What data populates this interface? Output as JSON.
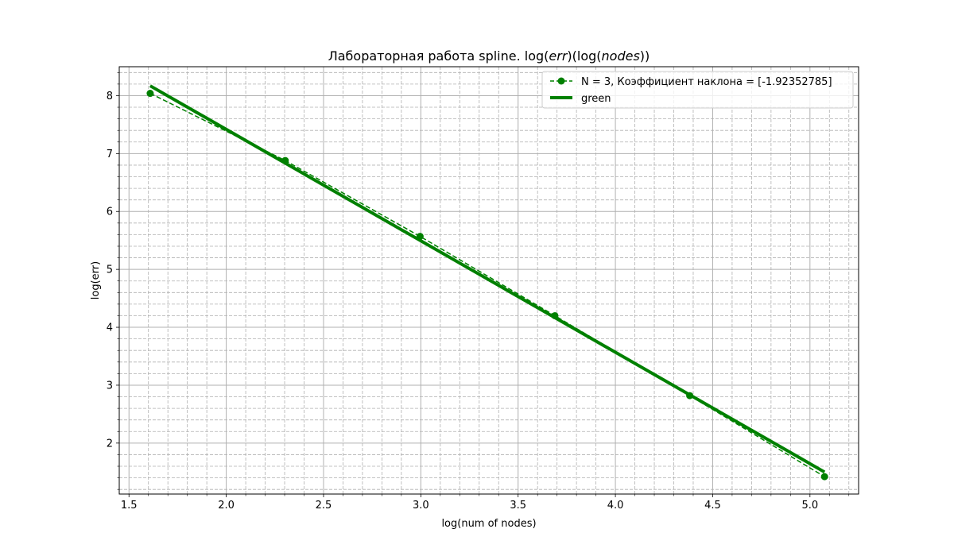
{
  "chart_data": {
    "type": "line",
    "title": {
      "prefix": "Лабораторная работа spline. log(",
      "italic1": "err",
      "middle": ")(log(",
      "italic2": "nodes",
      "suffix": "))"
    },
    "xlabel": "log(num of nodes)",
    "ylabel": "log(err)",
    "xlim": [
      1.45,
      5.25
    ],
    "ylim": [
      1.12,
      8.5
    ],
    "x_ticks": [
      1.5,
      2.0,
      2.5,
      3.0,
      3.5,
      4.0,
      4.5,
      5.0
    ],
    "x_tick_labels": [
      "1.5",
      "2.0",
      "2.5",
      "3.0",
      "3.5",
      "4.0",
      "4.5",
      "5.0"
    ],
    "y_ticks": [
      2,
      3,
      4,
      5,
      6,
      7,
      8
    ],
    "y_tick_labels": [
      "2",
      "3",
      "4",
      "5",
      "6",
      "7",
      "8"
    ],
    "grid": "on (major solid, minor dashed)",
    "legend_position": "upper right",
    "series": [
      {
        "name": "N = 3, Коэффициент наклона = [-1.92352785]",
        "style": "dashed line with circle markers",
        "color": "#008000",
        "x": [
          1.609,
          2.303,
          2.996,
          3.689,
          4.382,
          5.075
        ],
        "y": [
          8.04,
          6.88,
          5.57,
          4.2,
          2.82,
          1.42
        ]
      },
      {
        "name": "green",
        "style": "thick solid line",
        "color": "#008000",
        "x": [
          1.609,
          5.075
        ],
        "y": [
          8.17,
          1.5
        ]
      }
    ]
  }
}
